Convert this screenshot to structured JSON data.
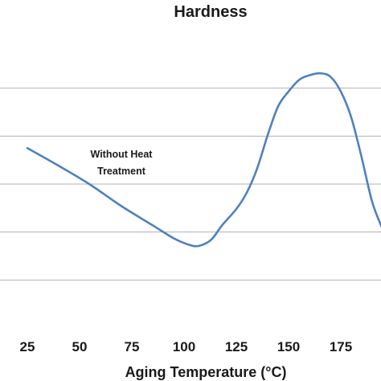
{
  "chart_data": {
    "type": "line",
    "title": "Hardness",
    "xlabel": "Aging Temperature (°C)",
    "ylabel": "",
    "x_ticks": [
      "25",
      "50",
      "75",
      "100",
      "125",
      "150",
      "175"
    ],
    "xlim": [
      15,
      195
    ],
    "ylim": [
      0,
      6
    ],
    "grid": true,
    "gridlines_y": [
      1,
      2,
      3,
      4,
      5
    ],
    "series_color": "#4f81bd",
    "series": [
      {
        "x": [
          25,
          40,
          55,
          70,
          85,
          95,
          102,
          107,
          113,
          118,
          125,
          130,
          135,
          140,
          145,
          150,
          155,
          160,
          165,
          170,
          175,
          180,
          185,
          190,
          195
        ],
        "y": [
          3.75,
          3.38,
          2.99,
          2.54,
          2.14,
          1.87,
          1.74,
          1.71,
          1.84,
          2.13,
          2.48,
          2.82,
          3.33,
          4.02,
          4.62,
          4.93,
          5.17,
          5.27,
          5.31,
          5.24,
          4.93,
          4.39,
          3.55,
          2.63,
          2.06
        ]
      }
    ],
    "annotations": [
      {
        "lines": [
          "Without Heat",
          "Treatment"
        ],
        "x": 70,
        "y": 3.55
      }
    ]
  }
}
